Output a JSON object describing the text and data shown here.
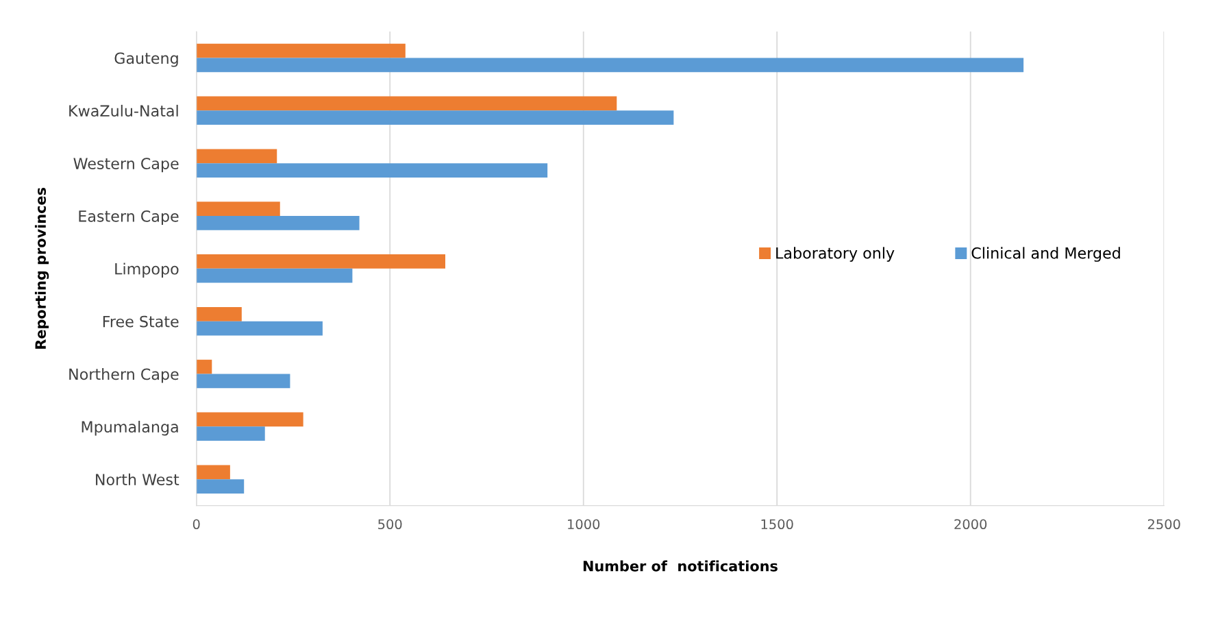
{
  "chart_data": {
    "type": "bar",
    "orientation": "horizontal",
    "xlabel": "Number of  notifications",
    "ylabel": "Reporting provinces",
    "categories": [
      "Gauteng",
      "KwaZulu-Natal",
      "Western Cape",
      "Eastern Cape",
      "Limpopo",
      "Free State",
      "Northern Cape",
      "Mpumalanga",
      "North West"
    ],
    "series": [
      {
        "name": "Laboratory only",
        "color": "#ed7d31",
        "values": [
          540,
          1086,
          208,
          216,
          643,
          117,
          40,
          276,
          87
        ]
      },
      {
        "name": "Clinical and Merged",
        "color": "#5b9bd5",
        "values": [
          2137,
          1233,
          907,
          421,
          403,
          326,
          242,
          177,
          123
        ]
      }
    ],
    "xlim": [
      0,
      2500
    ],
    "xticks": [
      0,
      500,
      1000,
      1500,
      2000,
      2500
    ],
    "grid": "x",
    "legend": "right"
  }
}
